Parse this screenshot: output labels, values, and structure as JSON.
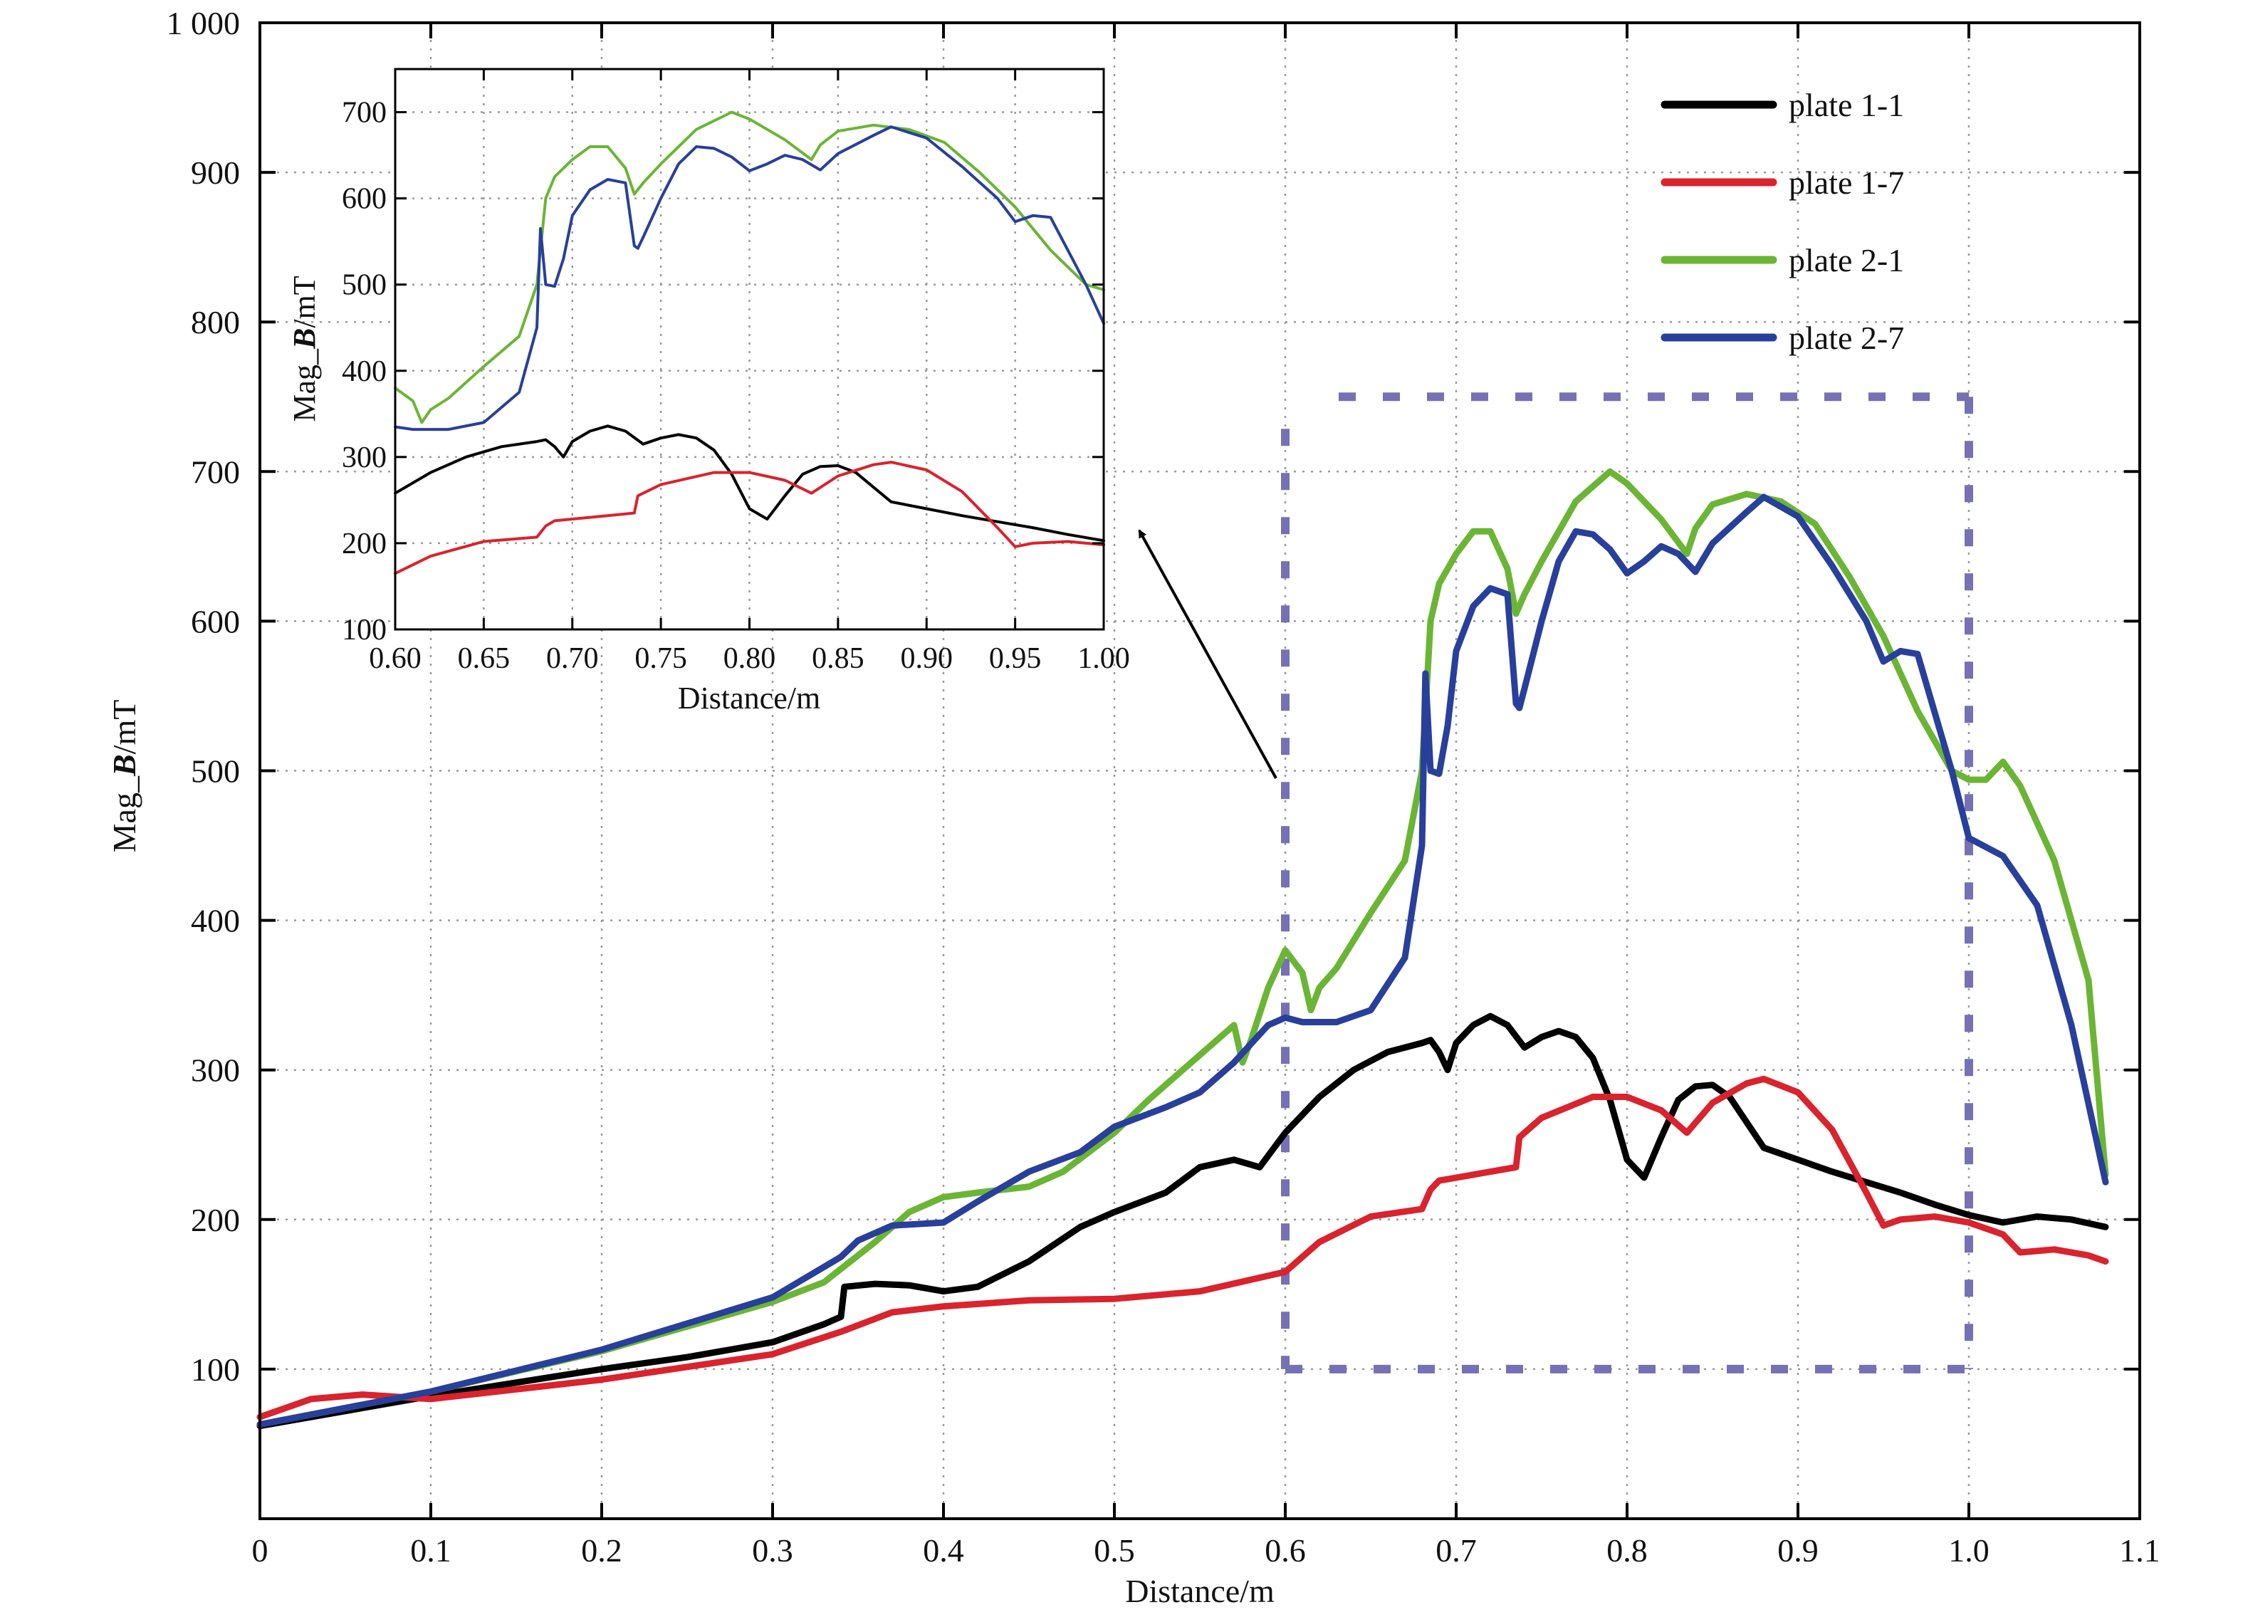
{
  "chart_data": [
    {
      "type": "line",
      "xlabel": "Distance/m",
      "ylabel": "Mag_B/mT",
      "ylabel_parts": [
        "Mag_",
        "B",
        "/mT"
      ],
      "xlim": [
        0,
        1.1
      ],
      "ylim": [
        0,
        1000
      ],
      "xticks": [
        0,
        0.1,
        0.2,
        0.3,
        0.4,
        0.5,
        0.6,
        0.7,
        0.8,
        0.9,
        1.0,
        1.1
      ],
      "xtick_labels": [
        "0",
        "0.1",
        "0.2",
        "0.3",
        "0.4",
        "0.5",
        "0.6",
        "0.7",
        "0.8",
        "0.9",
        "1.0",
        "1.1"
      ],
      "yticks": [
        100,
        200,
        300,
        400,
        500,
        600,
        700,
        800,
        900,
        1000
      ],
      "ytick_labels": [
        "100",
        "200",
        "300",
        "400",
        "500",
        "600",
        "700",
        "800",
        "900",
        "1 000"
      ],
      "grid": true,
      "legend_position": "top-right",
      "highlight_box": {
        "x": [
          0.6,
          1.0
        ],
        "y": [
          100,
          750
        ]
      },
      "series": [
        {
          "name": "plate 1-1",
          "color": "#000000",
          "x": [
            0,
            0.1,
            0.2,
            0.25,
            0.3,
            0.33,
            0.34,
            0.342,
            0.36,
            0.38,
            0.4,
            0.42,
            0.45,
            0.48,
            0.5,
            0.53,
            0.55,
            0.57,
            0.585,
            0.6,
            0.62,
            0.64,
            0.66,
            0.68,
            0.685,
            0.69,
            0.695,
            0.7,
            0.71,
            0.72,
            0.73,
            0.74,
            0.75,
            0.76,
            0.77,
            0.78,
            0.79,
            0.8,
            0.81,
            0.82,
            0.83,
            0.84,
            0.85,
            0.86,
            0.87,
            0.88,
            0.9,
            0.92,
            0.94,
            0.96,
            0.98,
            1.0,
            1.02,
            1.04,
            1.06,
            1.08
          ],
          "y": [
            62,
            82,
            100,
            108,
            118,
            130,
            135,
            155,
            157,
            156,
            152,
            155,
            172,
            195,
            205,
            218,
            235,
            240,
            235,
            258,
            282,
            300,
            312,
            318,
            320,
            312,
            300,
            318,
            330,
            336,
            330,
            315,
            322,
            326,
            322,
            308,
            280,
            240,
            228,
            255,
            280,
            289,
            290,
            282,
            265,
            248,
            240,
            232,
            225,
            218,
            210,
            203,
            198,
            202,
            200,
            195
          ]
        },
        {
          "name": "plate 1-7",
          "color": "#d9232d",
          "x": [
            0,
            0.03,
            0.06,
            0.1,
            0.2,
            0.3,
            0.34,
            0.37,
            0.4,
            0.45,
            0.5,
            0.55,
            0.6,
            0.62,
            0.65,
            0.68,
            0.685,
            0.69,
            0.71,
            0.735,
            0.737,
            0.75,
            0.78,
            0.8,
            0.82,
            0.835,
            0.85,
            0.87,
            0.88,
            0.9,
            0.92,
            0.94,
            0.95,
            0.96,
            0.98,
            1.0,
            1.02,
            1.03,
            1.05,
            1.07,
            1.08
          ],
          "y": [
            68,
            80,
            83,
            80,
            93,
            110,
            125,
            138,
            142,
            146,
            147,
            152,
            165,
            185,
            202,
            207,
            220,
            226,
            230,
            235,
            255,
            268,
            282,
            282,
            273,
            258,
            278,
            291,
            294,
            285,
            260,
            218,
            196,
            200,
            202,
            198,
            190,
            178,
            180,
            176,
            172
          ]
        },
        {
          "name": "plate 2-1",
          "color": "#6bb535",
          "x": [
            0,
            0.1,
            0.2,
            0.3,
            0.33,
            0.36,
            0.38,
            0.4,
            0.42,
            0.45,
            0.47,
            0.5,
            0.52,
            0.55,
            0.57,
            0.575,
            0.58,
            0.59,
            0.6,
            0.61,
            0.615,
            0.62,
            0.63,
            0.65,
            0.67,
            0.68,
            0.685,
            0.69,
            0.7,
            0.71,
            0.72,
            0.73,
            0.735,
            0.74,
            0.75,
            0.77,
            0.79,
            0.8,
            0.82,
            0.835,
            0.84,
            0.85,
            0.87,
            0.89,
            0.91,
            0.93,
            0.95,
            0.97,
            0.99,
            1.0,
            1.01,
            1.02,
            1.03,
            1.05,
            1.07,
            1.08
          ],
          "y": [
            63,
            85,
            112,
            145,
            158,
            185,
            205,
            215,
            218,
            222,
            232,
            258,
            280,
            310,
            330,
            305,
            320,
            355,
            380,
            365,
            340,
            355,
            368,
            405,
            440,
            500,
            600,
            625,
            645,
            660,
            660,
            635,
            605,
            618,
            640,
            680,
            700,
            692,
            668,
            645,
            662,
            678,
            685,
            680,
            665,
            630,
            590,
            540,
            500,
            494,
            494,
            506,
            490,
            440,
            360,
            230
          ]
        },
        {
          "name": "plate 2-7",
          "color": "#283f9b",
          "x": [
            0,
            0.1,
            0.2,
            0.3,
            0.34,
            0.35,
            0.37,
            0.4,
            0.42,
            0.45,
            0.48,
            0.5,
            0.53,
            0.55,
            0.57,
            0.59,
            0.6,
            0.61,
            0.63,
            0.65,
            0.67,
            0.68,
            0.682,
            0.685,
            0.69,
            0.695,
            0.7,
            0.71,
            0.72,
            0.73,
            0.735,
            0.737,
            0.74,
            0.75,
            0.76,
            0.77,
            0.78,
            0.79,
            0.8,
            0.81,
            0.82,
            0.83,
            0.84,
            0.85,
            0.87,
            0.88,
            0.9,
            0.92,
            0.94,
            0.95,
            0.96,
            0.97,
            0.99,
            1.0,
            1.02,
            1.04,
            1.06,
            1.08
          ],
          "y": [
            63,
            85,
            113,
            148,
            175,
            186,
            196,
            198,
            212,
            232,
            245,
            262,
            275,
            285,
            305,
            330,
            335,
            332,
            332,
            340,
            375,
            450,
            565,
            500,
            498,
            530,
            580,
            610,
            622,
            618,
            545,
            542,
            555,
            600,
            640,
            660,
            658,
            648,
            632,
            640,
            650,
            645,
            633,
            652,
            673,
            683,
            670,
            637,
            600,
            573,
            580,
            578,
            500,
            455,
            443,
            410,
            330,
            225
          ]
        }
      ]
    },
    {
      "type": "line",
      "xlabel": "Distance/m",
      "ylabel": "Mag_B/mT",
      "ylabel_parts": [
        "Mag_",
        "B",
        "/mT"
      ],
      "xlim": [
        0.6,
        1.0
      ],
      "ylim": [
        100,
        750
      ],
      "xticks": [
        0.6,
        0.65,
        0.7,
        0.75,
        0.8,
        0.85,
        0.9,
        0.95,
        1.0
      ],
      "xtick_labels": [
        "0.60",
        "0.65",
        "0.70",
        "0.75",
        "0.80",
        "0.85",
        "0.90",
        "0.95",
        "1.00"
      ],
      "yticks": [
        100,
        200,
        300,
        400,
        500,
        600,
        700
      ],
      "ytick_labels": [
        "100",
        "200",
        "300",
        "400",
        "500",
        "600",
        "700"
      ],
      "grid": true,
      "position_word": "inset top-left"
    }
  ]
}
